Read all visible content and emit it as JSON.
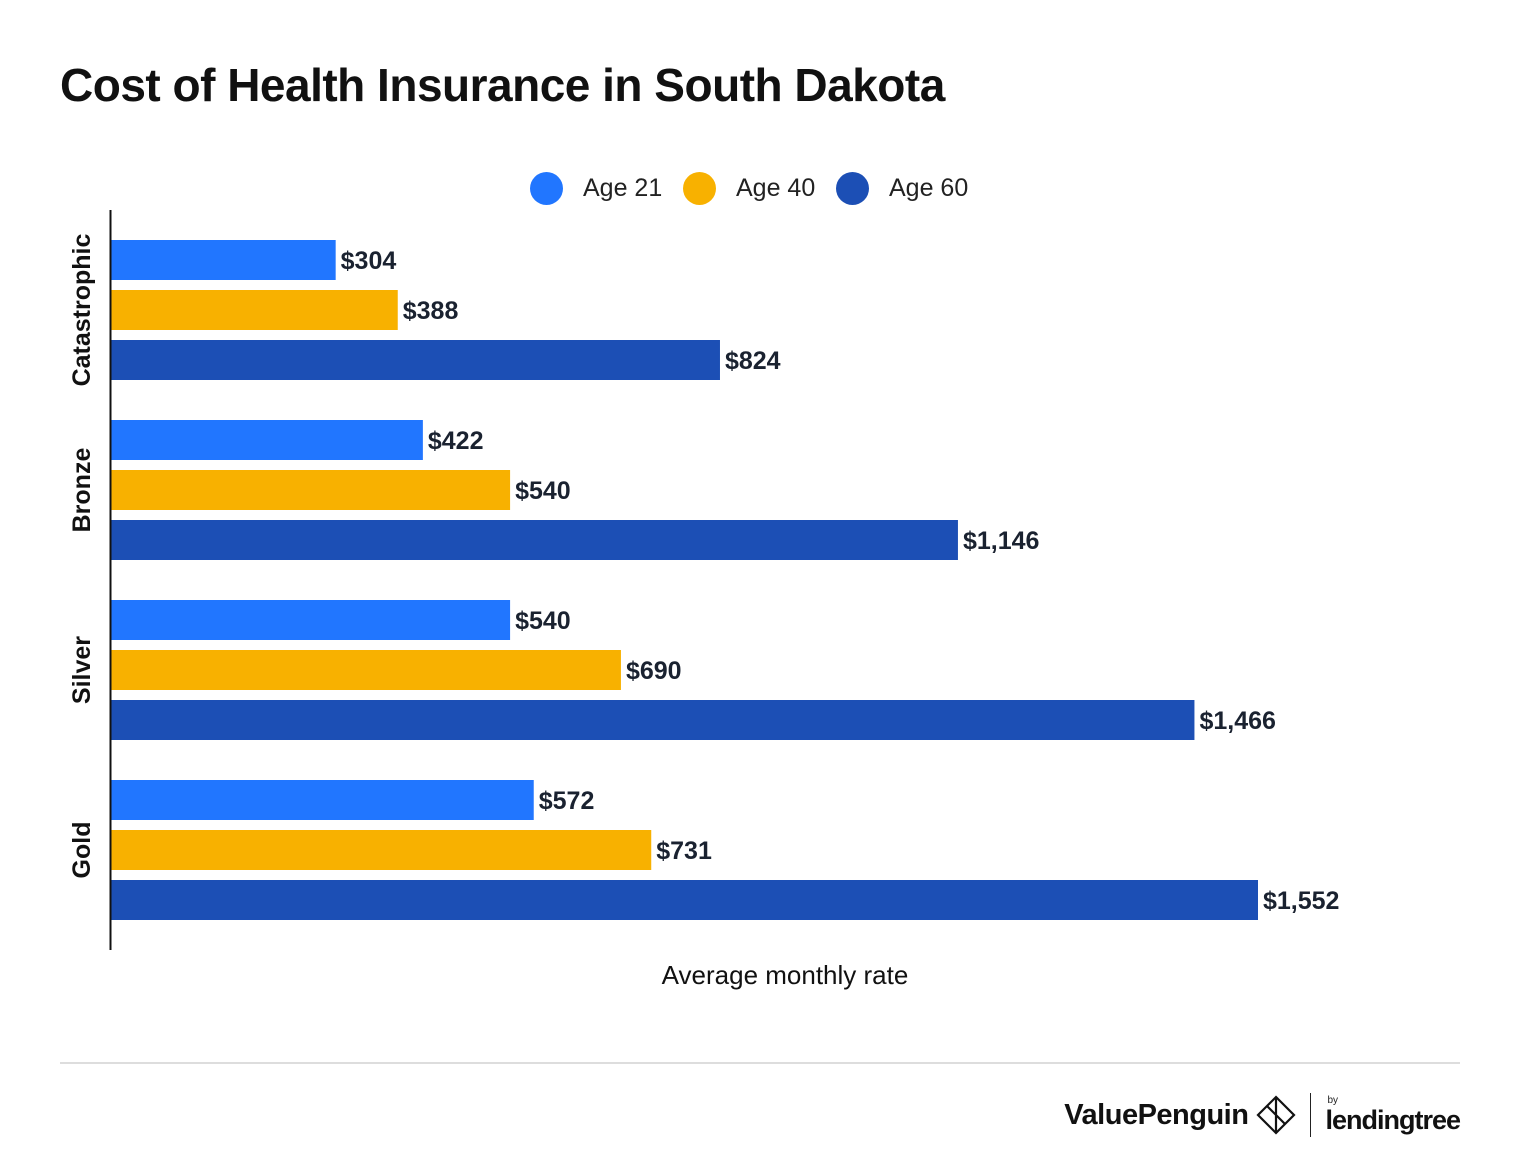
{
  "chart_data": {
    "type": "bar",
    "orientation": "horizontal",
    "title": "Cost of Health Insurance in South Dakota",
    "xlabel": "Average monthly rate",
    "ylabel": "",
    "categories": [
      "Catastrophic",
      "Bronze",
      "Silver",
      "Gold"
    ],
    "series": [
      {
        "name": "Age 21",
        "color": "#2176FF",
        "values": [
          304,
          422,
          540,
          572
        ],
        "labels": [
          "$304",
          "$422",
          "$540",
          "$572"
        ]
      },
      {
        "name": "Age 40",
        "color": "#F8B100",
        "values": [
          388,
          540,
          690,
          731
        ],
        "labels": [
          "$388",
          "$540",
          "$690",
          "$731"
        ]
      },
      {
        "name": "Age 60",
        "color": "#1C4FB5",
        "values": [
          824,
          1146,
          1466,
          1552
        ],
        "labels": [
          "$824",
          "$1,146",
          "$1,466",
          "$1,552"
        ]
      }
    ],
    "xlim": [
      0,
      1552
    ],
    "grid": false,
    "legend_position": "top-center"
  },
  "legend": {
    "items": [
      {
        "label": "Age 21",
        "color": "#2176FF"
      },
      {
        "label": "Age 40",
        "color": "#F8B100"
      },
      {
        "label": "Age 60",
        "color": "#1C4FB5"
      }
    ]
  },
  "footer": {
    "brand": "ValuePenguin",
    "by": "by",
    "partner": "lendingtree"
  }
}
